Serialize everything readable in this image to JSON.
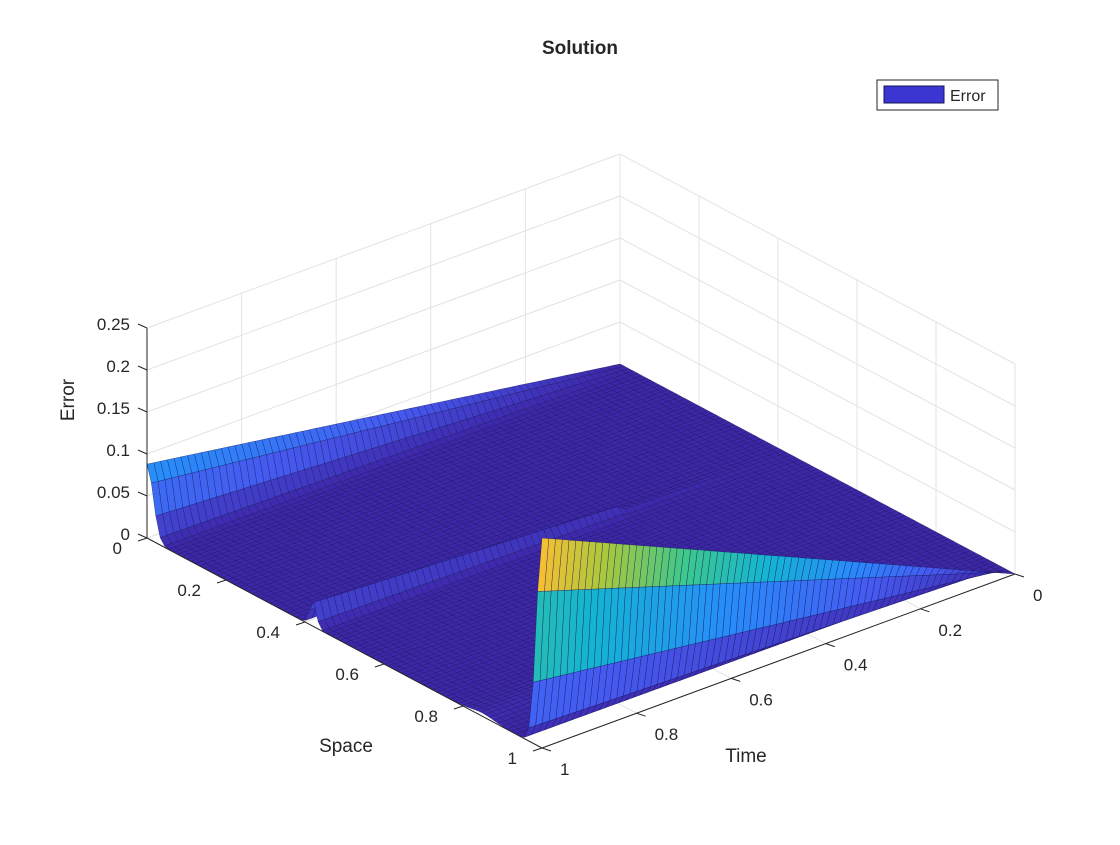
{
  "chart_data": {
    "type": "surface",
    "title": "Solution",
    "xlabel": "Space",
    "ylabel": "Time",
    "zlabel": "Error",
    "xlim": [
      0,
      1
    ],
    "ylim": [
      0,
      1
    ],
    "zlim": [
      0,
      0.25
    ],
    "x_ticks": [
      "0",
      "0.2",
      "0.4",
      "0.6",
      "0.8",
      "1"
    ],
    "y_ticks": [
      "0",
      "0.2",
      "0.4",
      "0.6",
      "0.8",
      "1"
    ],
    "z_ticks": [
      "0",
      "0.05",
      "0.1",
      "0.15",
      "0.2",
      "0.25"
    ],
    "grid": true,
    "legend": {
      "entries": [
        "Error"
      ],
      "position": "top-right"
    },
    "colormap": "parula",
    "series": [
      {
        "name": "Error",
        "description_points": [
          {
            "space": 0.0,
            "time": 1.0,
            "error": 0.09
          },
          {
            "space": 0.0,
            "time": 0.0,
            "error": 0.0
          },
          {
            "space": 0.42,
            "time": 0.66,
            "error": 0.03
          },
          {
            "space": 1.0,
            "time": 1.0,
            "error": 0.25
          },
          {
            "space": 1.0,
            "time": 0.0,
            "error": 0.0
          }
        ]
      }
    ]
  },
  "colors": {
    "surface_base": "#3c3ee0",
    "edge": "#15155a",
    "axis": "#262626",
    "grid": "#e3e3e3"
  }
}
